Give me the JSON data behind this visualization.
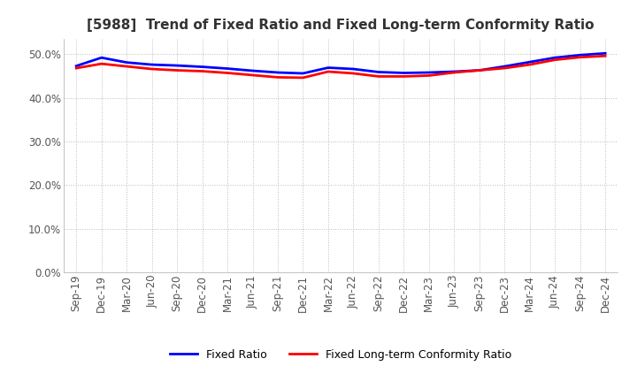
{
  "title": "[5988]  Trend of Fixed Ratio and Fixed Long-term Conformity Ratio",
  "ylim": [
    0.0,
    0.535
  ],
  "yticks": [
    0.0,
    0.1,
    0.2,
    0.3,
    0.4,
    0.5
  ],
  "ytick_labels": [
    "0.0%",
    "10.0%",
    "20.0%",
    "30.0%",
    "40.0%",
    "50.0%"
  ],
  "x_labels": [
    "Sep-19",
    "Dec-19",
    "Mar-20",
    "Jun-20",
    "Sep-20",
    "Dec-20",
    "Mar-21",
    "Jun-21",
    "Sep-21",
    "Dec-21",
    "Mar-22",
    "Jun-22",
    "Sep-22",
    "Dec-22",
    "Mar-23",
    "Jun-23",
    "Sep-23",
    "Dec-23",
    "Mar-24",
    "Jun-24",
    "Sep-24",
    "Dec-24"
  ],
  "fixed_ratio": [
    0.473,
    0.492,
    0.481,
    0.476,
    0.474,
    0.471,
    0.467,
    0.462,
    0.458,
    0.456,
    0.469,
    0.466,
    0.459,
    0.457,
    0.458,
    0.46,
    0.463,
    0.472,
    0.482,
    0.492,
    0.498,
    0.502
  ],
  "fixed_lt_ratio": [
    0.468,
    0.478,
    0.472,
    0.466,
    0.463,
    0.461,
    0.457,
    0.452,
    0.447,
    0.446,
    0.46,
    0.456,
    0.449,
    0.449,
    0.451,
    0.458,
    0.463,
    0.468,
    0.476,
    0.487,
    0.493,
    0.496
  ],
  "line_color_fixed": "#0000FF",
  "line_color_lt": "#FF0000",
  "legend_fixed": "Fixed Ratio",
  "legend_lt": "Fixed Long-term Conformity Ratio",
  "bg_color": "#FFFFFF",
  "grid_color": "#BBBBBB",
  "title_fontsize": 11,
  "axis_fontsize": 8.5,
  "line_width": 2.0
}
